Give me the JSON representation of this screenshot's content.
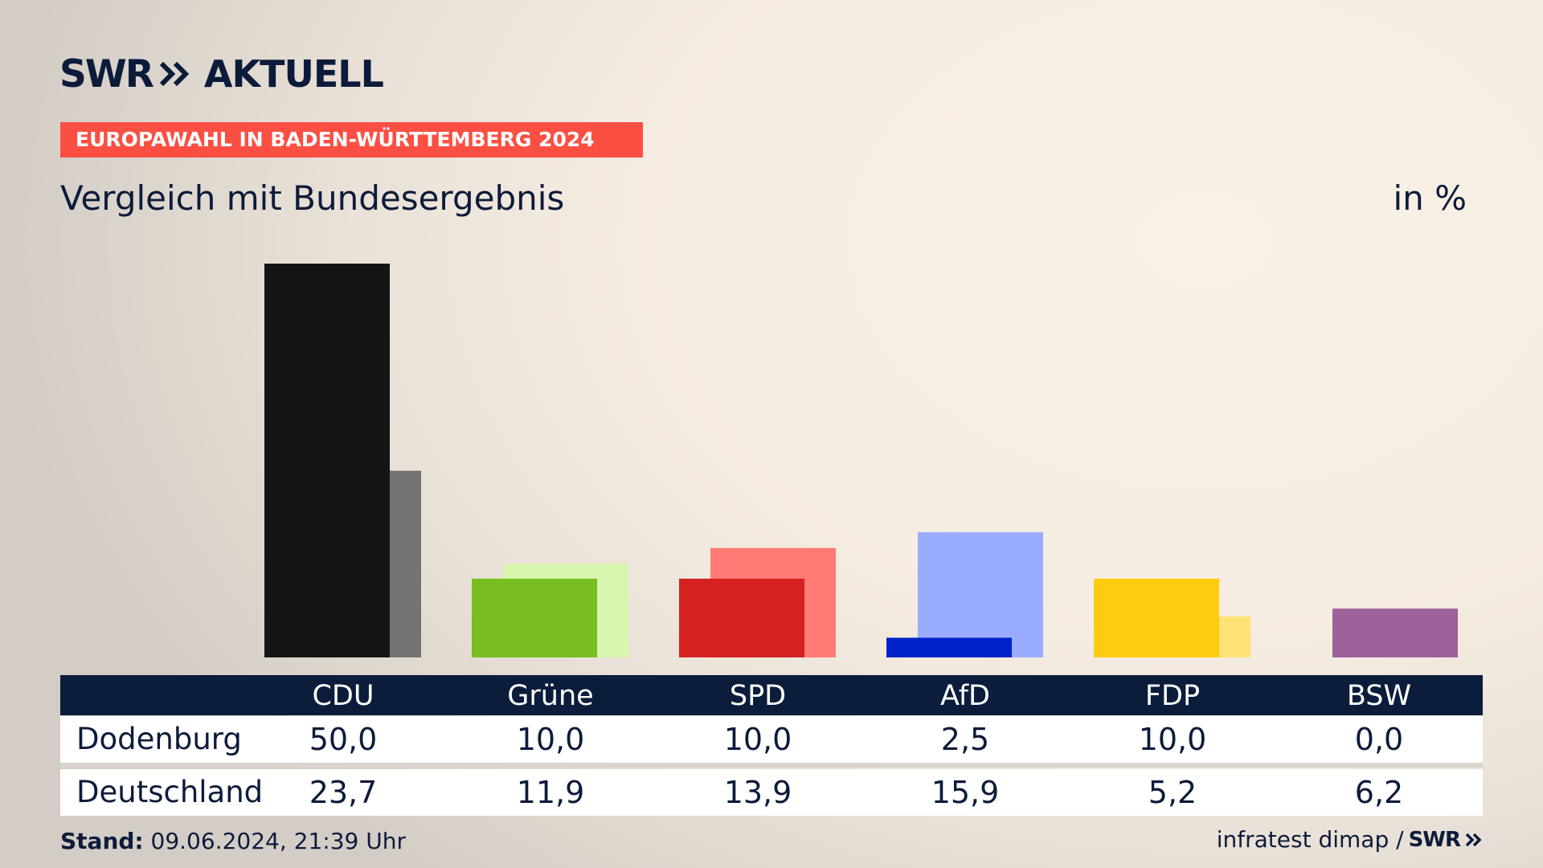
{
  "header": {
    "logo_text": "SWR",
    "brand": "AKTUELL",
    "banner": "EUROPAWAHL IN BADEN-WÜRTTEMBERG 2024",
    "subtitle": "Vergleich mit Bundesergebnis",
    "unit": "in %"
  },
  "chart_data": {
    "type": "bar",
    "categories": [
      "CDU",
      "Grüne",
      "SPD",
      "AfD",
      "FDP",
      "BSW"
    ],
    "series": [
      {
        "name": "Dodenburg",
        "values": [
          50.0,
          10.0,
          10.0,
          2.5,
          10.0,
          0.0
        ]
      },
      {
        "name": "Deutschland",
        "values": [
          23.7,
          11.9,
          13.9,
          15.9,
          5.2,
          6.2
        ]
      }
    ],
    "colors": {
      "local": [
        "#151515",
        "#78be20",
        "#d72020",
        "#0022cc",
        "#ffcc0d",
        "#9e619b"
      ],
      "national": [
        "#747371",
        "#d8f6ad",
        "#ff7b73",
        "#9aacff",
        "#ffe274",
        "#9e619b"
      ]
    },
    "ylim": [
      0,
      50
    ]
  },
  "table": {
    "rows": [
      {
        "label": "Dodenburg",
        "values": [
          "50,0",
          "10,0",
          "10,0",
          "2,5",
          "10,0",
          "0,0"
        ]
      },
      {
        "label": "Deutschland",
        "values": [
          "23,7",
          "11,9",
          "13,9",
          "15,9",
          "5,2",
          "6,2"
        ]
      }
    ]
  },
  "footer": {
    "stand_label": "Stand:",
    "stand_value": "09.06.2024, 21:39 Uhr",
    "source": "infratest dimap /",
    "logo_text": "SWR"
  }
}
